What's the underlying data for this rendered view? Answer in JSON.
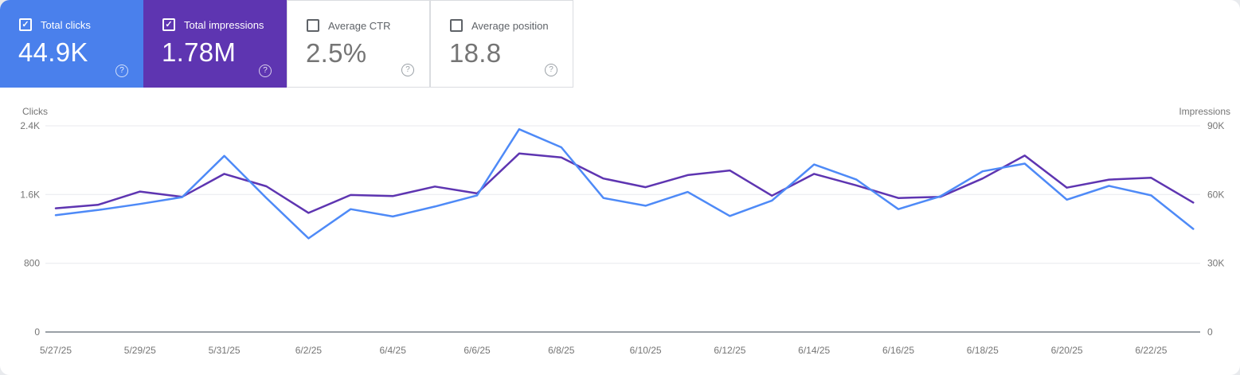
{
  "cards": [
    {
      "label": "Total clicks",
      "value": "44.9K",
      "checked": true,
      "selected": true,
      "bg": "#4a80ec",
      "help_glyph": "?",
      "check_glyph": "✓"
    },
    {
      "label": "Total impressions",
      "value": "1.78M",
      "checked": true,
      "selected": true,
      "bg": "#5e35b1",
      "help_glyph": "?",
      "check_glyph": "✓"
    },
    {
      "label": "Average CTR",
      "value": "2.5%",
      "checked": false,
      "selected": false,
      "bg": "#ffffff",
      "help_glyph": "?",
      "check_glyph": ""
    },
    {
      "label": "Average position",
      "value": "18.8",
      "checked": false,
      "selected": false,
      "bg": "#ffffff",
      "help_glyph": "?",
      "check_glyph": ""
    }
  ],
  "chart_data": {
    "type": "line",
    "x": [
      "5/27/25",
      "5/28/25",
      "5/29/25",
      "5/30/25",
      "5/31/25",
      "6/1/25",
      "6/2/25",
      "6/3/25",
      "6/4/25",
      "6/5/25",
      "6/6/25",
      "6/7/25",
      "6/8/25",
      "6/9/25",
      "6/10/25",
      "6/11/25",
      "6/12/25",
      "6/13/25",
      "6/14/25",
      "6/15/25",
      "6/16/25",
      "6/17/25",
      "6/18/25",
      "6/19/25",
      "6/20/25",
      "6/21/25",
      "6/22/25",
      "6/23/25"
    ],
    "x_tick_labels": [
      "5/27/25",
      "5/29/25",
      "5/31/25",
      "6/2/25",
      "6/4/25",
      "6/6/25",
      "6/8/25",
      "6/10/25",
      "6/12/25",
      "6/14/25",
      "6/16/25",
      "6/18/25",
      "6/20/25",
      "6/22/25"
    ],
    "series": [
      {
        "name": "Clicks",
        "axis": "left",
        "color": "#4e8af7",
        "values": [
          1360,
          1420,
          1490,
          1570,
          2050,
          1560,
          1090,
          1430,
          1345,
          1460,
          1590,
          2360,
          2150,
          1560,
          1470,
          1630,
          1350,
          1530,
          1950,
          1775,
          1430,
          1580,
          1870,
          1960,
          1540,
          1700,
          1590,
          1200
        ]
      },
      {
        "name": "Impressions",
        "axis": "right",
        "color": "#5e35b1",
        "values": [
          54000,
          55500,
          61300,
          59000,
          69000,
          63600,
          52000,
          59800,
          59300,
          63500,
          60500,
          77900,
          76200,
          67000,
          63200,
          68500,
          70500,
          59500,
          69000,
          64000,
          58500,
          59000,
          67000,
          77000,
          63000,
          66500,
          67300,
          56500
        ]
      }
    ],
    "left_axis": {
      "title": "Clicks",
      "ticks": [
        "0",
        "800",
        "1.6K",
        "2.4K"
      ],
      "min": 0,
      "max": 2400
    },
    "right_axis": {
      "title": "Impressions",
      "ticks": [
        "0",
        "30K",
        "60K",
        "90K"
      ],
      "min": 0,
      "max": 90000
    },
    "grid": "horizontal",
    "legend_position": "none"
  },
  "colors": {
    "clicks_accent": "#4a80ec",
    "impressions_accent": "#5e35b1",
    "gridline": "#e8eaed",
    "axis_line": "#9aa0a6",
    "tick_text": "#80868b",
    "date_text": "#757575"
  }
}
